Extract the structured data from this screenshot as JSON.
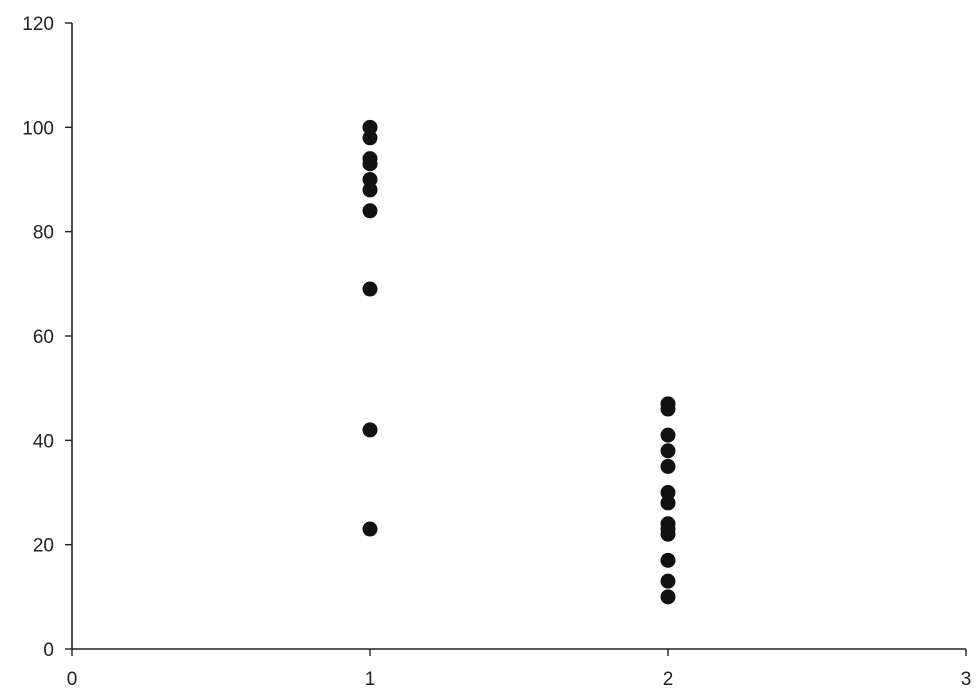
{
  "chart_data": {
    "type": "scatter",
    "title": "",
    "xlabel": "",
    "ylabel": "",
    "xlim": [
      0,
      3
    ],
    "ylim": [
      0,
      120
    ],
    "xticks": [
      0,
      1,
      2,
      3
    ],
    "yticks": [
      0,
      20,
      40,
      60,
      80,
      100,
      120
    ],
    "grid": false,
    "legend": "none",
    "marker_color": "#111111",
    "axis_color": "#222222",
    "series": [
      {
        "points": [
          {
            "x": 1,
            "y": 100
          },
          {
            "x": 1,
            "y": 98
          },
          {
            "x": 1,
            "y": 94
          },
          {
            "x": 1,
            "y": 93
          },
          {
            "x": 1,
            "y": 90
          },
          {
            "x": 1,
            "y": 88
          },
          {
            "x": 1,
            "y": 84
          },
          {
            "x": 1,
            "y": 69
          },
          {
            "x": 1,
            "y": 42
          },
          {
            "x": 1,
            "y": 23
          },
          {
            "x": 2,
            "y": 47
          },
          {
            "x": 2,
            "y": 46
          },
          {
            "x": 2,
            "y": 41
          },
          {
            "x": 2,
            "y": 38
          },
          {
            "x": 2,
            "y": 35
          },
          {
            "x": 2,
            "y": 30
          },
          {
            "x": 2,
            "y": 28
          },
          {
            "x": 2,
            "y": 24
          },
          {
            "x": 2,
            "y": 23
          },
          {
            "x": 2,
            "y": 22
          },
          {
            "x": 2,
            "y": 17
          },
          {
            "x": 2,
            "y": 13
          },
          {
            "x": 2,
            "y": 10
          }
        ]
      }
    ]
  }
}
